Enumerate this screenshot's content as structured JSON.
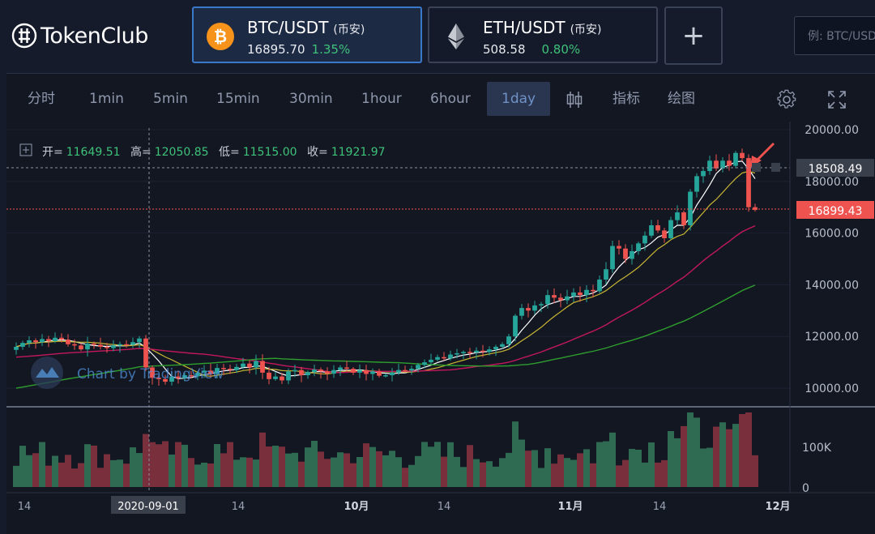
{
  "app": {
    "logo_text": "TokenClub"
  },
  "pairs": [
    {
      "name": "BTC/USDT",
      "exchange": "(币安)",
      "price": "16895.70",
      "change": "1.35%",
      "active": true,
      "icon": "bitcoin-icon",
      "icon_color": "#f7931a"
    },
    {
      "name": "ETH/USDT",
      "exchange": "(币安)",
      "price": "508.58",
      "change": "0.80%",
      "active": false,
      "icon": "ethereum-icon"
    }
  ],
  "add_button": "+",
  "search": {
    "placeholder": "例: BTC/USD"
  },
  "toolbar": {
    "intervals": [
      "分时",
      "1min",
      "5min",
      "15min",
      "30min",
      "1hour",
      "6hour",
      "1day"
    ],
    "active_interval": "1day",
    "indicators_label": "指标",
    "draw_label": "绘图"
  },
  "ohlc": {
    "open_label": "开=",
    "open": "11649.51",
    "high_label": "高=",
    "high": "12050.85",
    "low_label": "低=",
    "low": "11515.00",
    "close_label": "收=",
    "close": "11921.97"
  },
  "watermark": "Chart by TradingView",
  "chart_data": {
    "type": "candlestick",
    "y_ticks": [
      "20000.00",
      "18000.00",
      "16000.00",
      "14000.00",
      "12000.00",
      "10000.00"
    ],
    "ylim": [
      9000,
      20500
    ],
    "price_labels": [
      {
        "value": 18508.49,
        "text": "18508.49",
        "color": "#3a3f4c"
      },
      {
        "value": 16899.43,
        "text": "16899.43",
        "color": "#ef5350"
      }
    ],
    "volume_ticks": [
      "100K",
      "0"
    ],
    "x_ticks": [
      "14",
      "2020-09-01",
      "14",
      "10月",
      "14",
      "11月",
      "14",
      "12月"
    ],
    "crosshair_date": "2020-09-01",
    "colors": {
      "up": "#26a69a",
      "down": "#ef5350",
      "ma1": "#ffffff",
      "ma2": "#c9b733",
      "ma3": "#c2185b",
      "ma4": "#2e9e2e"
    },
    "closes": [
      11600,
      11750,
      11850,
      11780,
      11900,
      11820,
      11950,
      11880,
      11700,
      11650,
      11500,
      11720,
      11680,
      11600,
      11550,
      11650,
      11700,
      11680,
      11780,
      11921,
      10800,
      10400,
      10350,
      10250,
      10450,
      10380,
      10500,
      10460,
      10600,
      10680,
      10550,
      10780,
      10750,
      10700,
      10820,
      10950,
      10800,
      11050,
      10600,
      10350,
      10450,
      10300,
      10650,
      10700,
      10500,
      10620,
      10720,
      10650,
      10560,
      10700,
      10800,
      10750,
      10600,
      10700,
      10550,
      10650,
      10480,
      10500,
      10600,
      10700,
      10680,
      10750,
      10900,
      11000,
      11100,
      11200,
      11150,
      11300,
      11350,
      11400,
      11380,
      11450,
      11400,
      11500,
      11600,
      11700,
      12000,
      12800,
      13100,
      13000,
      13200,
      13250,
      13600,
      13500,
      13400,
      13550,
      13700,
      13600,
      13800,
      13750,
      14200,
      14600,
      15500,
      15400,
      15000,
      15300,
      15600,
      15900,
      16300,
      16100,
      15800,
      16500,
      16800,
      16300,
      17600,
      18200,
      18400,
      18800,
      18500,
      18800,
      18600,
      19100,
      18900,
      17000,
      16895
    ]
  }
}
